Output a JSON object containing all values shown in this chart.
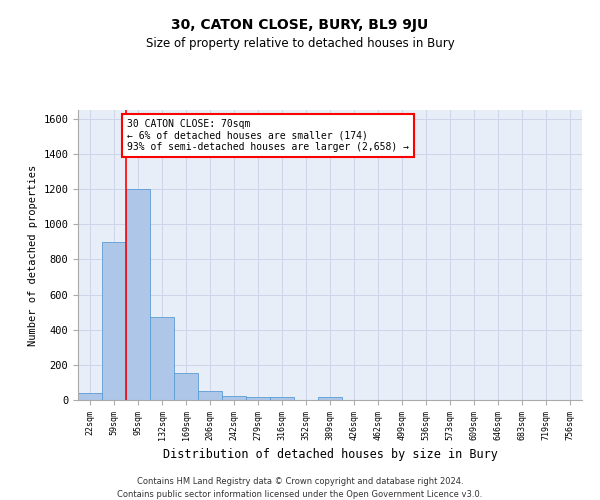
{
  "title": "30, CATON CLOSE, BURY, BL9 9JU",
  "subtitle": "Size of property relative to detached houses in Bury",
  "xlabel": "Distribution of detached houses by size in Bury",
  "ylabel": "Number of detached properties",
  "footer_line1": "Contains HM Land Registry data © Crown copyright and database right 2024.",
  "footer_line2": "Contains public sector information licensed under the Open Government Licence v3.0.",
  "categories": [
    "22sqm",
    "59sqm",
    "95sqm",
    "132sqm",
    "169sqm",
    "206sqm",
    "242sqm",
    "279sqm",
    "316sqm",
    "352sqm",
    "389sqm",
    "426sqm",
    "462sqm",
    "499sqm",
    "536sqm",
    "573sqm",
    "609sqm",
    "646sqm",
    "683sqm",
    "719sqm",
    "756sqm"
  ],
  "values": [
    40,
    900,
    1200,
    470,
    155,
    50,
    25,
    15,
    15,
    0,
    15,
    0,
    0,
    0,
    0,
    0,
    0,
    0,
    0,
    0,
    0
  ],
  "bar_color": "#aec6e8",
  "bar_edge_color": "#5b9bd5",
  "grid_color": "#ccd6e8",
  "axes_facecolor": "#e8eef8",
  "red_line_x": 1.5,
  "annotation_box_text": "30 CATON CLOSE: 70sqm\n← 6% of detached houses are smaller (174)\n93% of semi-detached houses are larger (2,658) →",
  "ylim": [
    0,
    1650
  ],
  "yticks": [
    0,
    200,
    400,
    600,
    800,
    1000,
    1200,
    1400,
    1600
  ]
}
